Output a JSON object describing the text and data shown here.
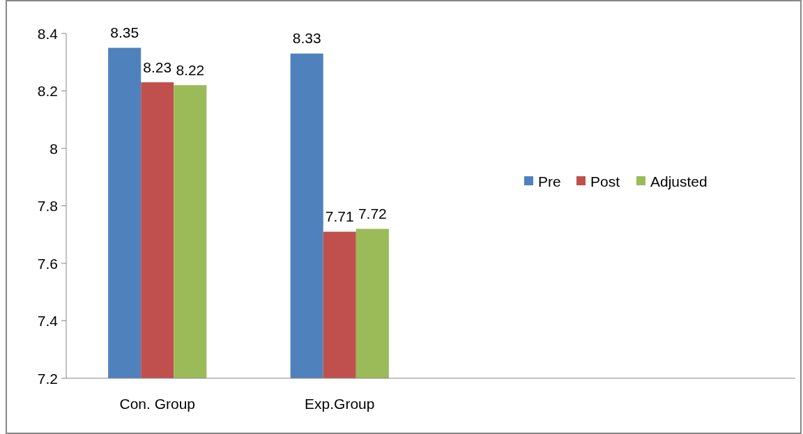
{
  "chart_data": {
    "type": "bar",
    "categories": [
      "Con. Group",
      "Exp.Group",
      null,
      null
    ],
    "series": [
      {
        "name": "Pre",
        "color": "#4f81bd",
        "values": [
          8.35,
          8.33,
          null,
          null
        ]
      },
      {
        "name": "Post",
        "color": "#c0504d",
        "values": [
          8.23,
          7.71,
          null,
          null
        ]
      },
      {
        "name": "Adjusted",
        "color": "#9bbb59",
        "values": [
          8.22,
          7.72,
          null,
          null
        ]
      }
    ],
    "ylim": [
      7.2,
      8.4
    ],
    "yticks": [
      7.2,
      7.4,
      7.6,
      7.8,
      8,
      8.2,
      8.4
    ],
    "grid": false,
    "legend": "right",
    "data_labels": true
  }
}
